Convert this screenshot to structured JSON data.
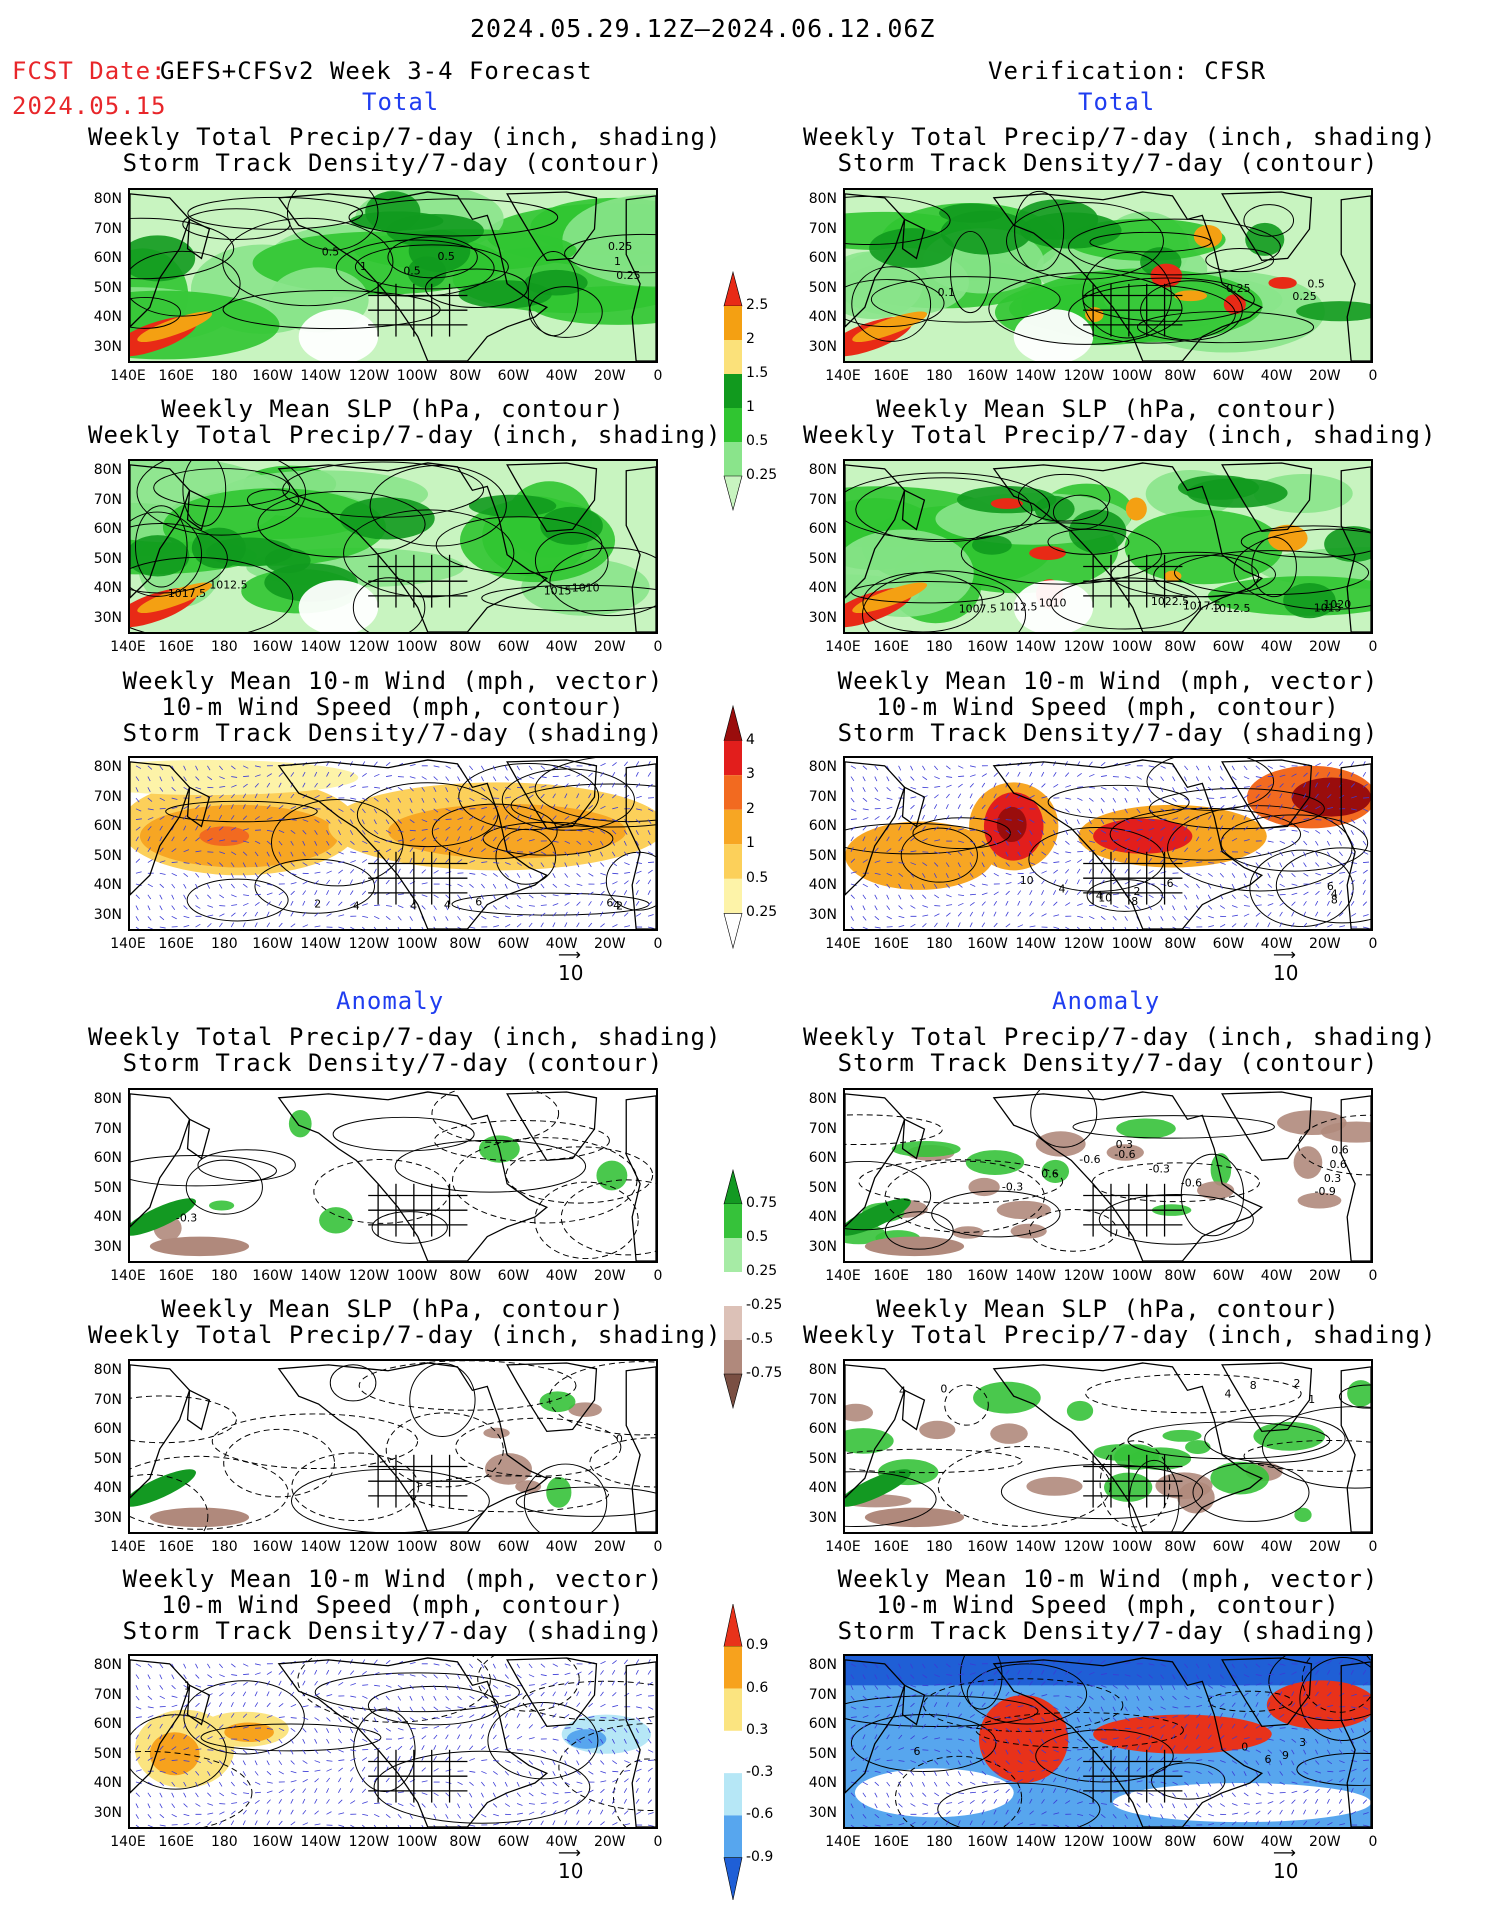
{
  "header": {
    "period": "2024.05.29.12Z–2024.06.12.06Z",
    "fcst_label": "FCST Date:",
    "fcst_model": "GEFS+CFSv2 Week 3-4 Forecast",
    "fcst_date": "2024.05.15",
    "verification": "Verification: CFSR"
  },
  "sections": {
    "total": "Total",
    "anomaly": "Anomaly"
  },
  "panel_titles": {
    "precip_storm": [
      "Weekly Total Precip/7-day (inch, shading)",
      "Storm Track Density/7-day (contour)"
    ],
    "slp_precip": [
      "Weekly Mean SLP (hPa, contour)",
      "Weekly Total Precip/7-day (inch, shading)"
    ],
    "wind_storm": [
      "Weekly Mean 10-m Wind (mph, vector)",
      "10-m Wind Speed (mph, contour)",
      "Storm Track Density/7-day (shading)"
    ]
  },
  "axes": {
    "lat_ticks": [
      "80N",
      "70N",
      "60N",
      "50N",
      "40N",
      "30N"
    ],
    "lon_ticks": [
      "140E",
      "160E",
      "180",
      "160W",
      "140W",
      "120W",
      "100W",
      "80W",
      "60W",
      "40W",
      "20W",
      "0"
    ]
  },
  "vector_ref": "10",
  "colorbars": {
    "precip_total": {
      "labels": [
        "2.5",
        "2",
        "1.5",
        "1",
        "0.5",
        "0.25"
      ],
      "colors": [
        "#e82a16",
        "#f4a012",
        "#fbe17a",
        "#119a1e",
        "#30c531",
        "#8ae48b",
        "#c8f4c0"
      ]
    },
    "storm_total": {
      "labels": [
        "4",
        "3",
        "2",
        "1",
        "0.5",
        "0.25"
      ],
      "colors": [
        "#9a0d0c",
        "#e21e1c",
        "#f26a20",
        "#f7a623",
        "#fcd05a",
        "#fdf3a8",
        "#ffffff"
      ]
    },
    "precip_anom": {
      "labels": [
        "0.75",
        "0.5",
        "0.25",
        "-0.25",
        "-0.5",
        "-0.75"
      ],
      "colors": [
        "#139922",
        "#36c23a",
        "#a6eba5",
        "#ffffff",
        "#dcc1b7",
        "#b0897c",
        "#7a4f43"
      ]
    },
    "storm_anom": {
      "labels": [
        "0.9",
        "0.6",
        "0.3",
        "-0.3",
        "-0.6",
        "-0.9"
      ],
      "colors": [
        "#e8321a",
        "#f7a21d",
        "#fbe480",
        "#ffffff",
        "#b6e7f6",
        "#57a6ee",
        "#1f5fd6"
      ]
    }
  },
  "contour_labels": {
    "fc_total_1": [
      "0.25",
      "0.5",
      "1",
      "1",
      "0.5",
      "0.5",
      "0.25"
    ],
    "vf_total_1": [
      "0.5",
      "0.25",
      "0.1",
      "0.25"
    ],
    "fc_total_2": [
      "1017.5",
      "1015",
      "1010",
      "1012.5"
    ],
    "vf_total_2": [
      "1022.5",
      "1010",
      "1020",
      "1017.5",
      "1012.5",
      "1015",
      "1012.5",
      "1007.5"
    ],
    "fc_total_3": [
      "2",
      "4",
      "4",
      "4",
      "4",
      "2",
      "6",
      "6"
    ],
    "vf_total_3": [
      "8",
      "8",
      "10",
      "4",
      "4",
      "2",
      "4",
      "6",
      "6",
      "10"
    ],
    "fc_anom_1": [
      "-0.3"
    ],
    "vf_anom_1": [
      "-0.9",
      "-0.3",
      "-0.6",
      "0.3",
      "0.6",
      "-0.3",
      "0.6",
      "-0.6",
      "-0.6",
      "0.6",
      "0.3"
    ],
    "fc_anom_2": [
      "0"
    ],
    "vf_anom_2": [
      "4",
      "8",
      "2",
      "0",
      "4",
      "1"
    ],
    "fc_anom_3": [
      "1"
    ],
    "vf_anom_3": [
      "3",
      "0",
      "6",
      "9",
      "6"
    ]
  }
}
